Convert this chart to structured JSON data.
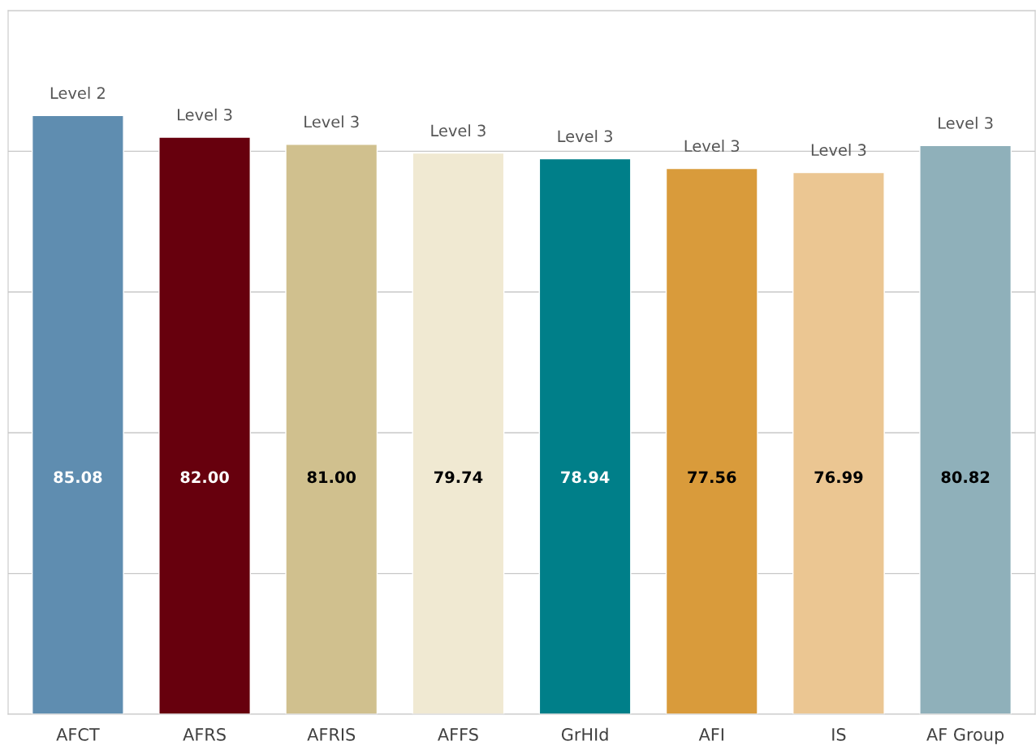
{
  "chart_data": {
    "type": "bar",
    "categories": [
      "AFCT",
      "AFRS",
      "AFRIS",
      "AFFS",
      "GrHId",
      "AFI",
      "IS",
      "AF Group"
    ],
    "values": [
      85.08,
      82.0,
      81.0,
      79.74,
      78.94,
      77.56,
      76.99,
      80.82
    ],
    "value_labels": [
      "85.08",
      "82.00",
      "81.00",
      "79.74",
      "78.94",
      "77.56",
      "76.99",
      "80.82"
    ],
    "colors": [
      "#5f8db0",
      "#67000d",
      "#d0c08e",
      "#f0e9d2",
      "#007f89",
      "#d99b3b",
      "#ebc692",
      "#8fb0ba"
    ],
    "ylim": [
      0,
      100
    ],
    "yticks": [
      {
        "value": 0,
        "label": null
      },
      {
        "value": 20,
        "label": null
      },
      {
        "value": 40,
        "label": null
      },
      {
        "value": 60,
        "label": null
      },
      {
        "value": 80,
        "label": null
      },
      {
        "value": 100,
        "label": null
      }
    ],
    "tick_labels": "x",
    "grid": "y",
    "legend": false,
    "annotations": [
      {
        "text": "Level 2",
        "x": "AFCT",
        "y": 85.08
      },
      {
        "text": "Level 3",
        "x": "AFRS",
        "y": 82.0
      },
      {
        "text": "Level 3",
        "x": "AFRIS",
        "y": 81.0
      },
      {
        "text": "Level 3",
        "x": "AFFS",
        "y": 79.74
      },
      {
        "text": "Level 3",
        "x": "GrHId",
        "y": 78.94
      },
      {
        "text": "Level 3",
        "x": "AFI",
        "y": 77.56
      },
      {
        "text": "Level 3",
        "x": "IS",
        "y": 76.99
      },
      {
        "text": "Level 3",
        "x": "AF Group",
        "y": 80.82
      }
    ]
  }
}
